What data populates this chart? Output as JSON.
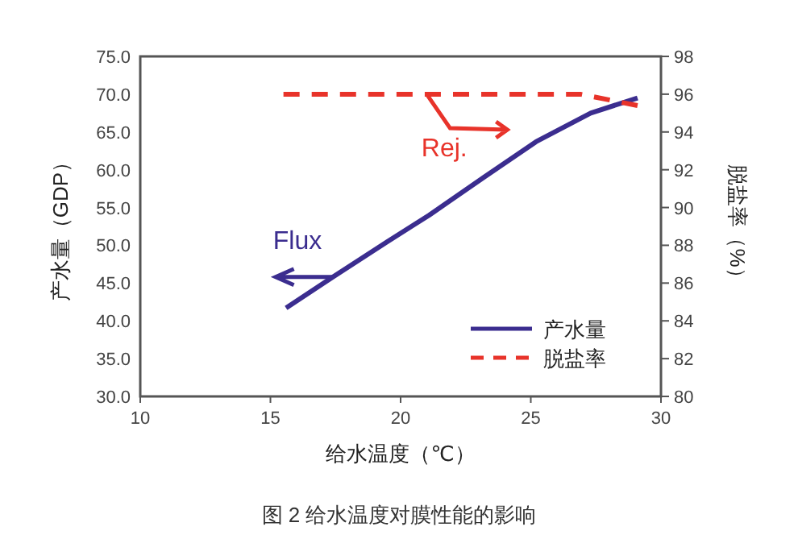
{
  "chart_data": {
    "type": "line",
    "xlabel": "给水温度（℃）",
    "ylabel": "产水量（GDP）",
    "y2label": "脱盐率（%）",
    "xlim": [
      10,
      30
    ],
    "xticks": [
      10,
      15,
      20,
      25,
      30
    ],
    "ylim": [
      30,
      75
    ],
    "yticks": [
      {
        "value": 30,
        "label": "30.0"
      },
      {
        "value": 35,
        "label": "35.0"
      },
      {
        "value": 40,
        "label": "40.0"
      },
      {
        "value": 45,
        "label": "45.0"
      },
      {
        "value": 50,
        "label": "50.0"
      },
      {
        "value": 55,
        "label": "55.0"
      },
      {
        "value": 60,
        "label": "60.0"
      },
      {
        "value": 65,
        "label": "65.0"
      },
      {
        "value": 70,
        "label": "70.0"
      },
      {
        "value": 75,
        "label": "75.0"
      }
    ],
    "y2lim": [
      80,
      98
    ],
    "y2ticks": [
      80,
      82,
      84,
      86,
      88,
      90,
      92,
      94,
      96,
      98
    ],
    "series": [
      {
        "name": "产水量",
        "color": "#3b2d8f",
        "line_style": "solid",
        "x": [
          15.6,
          17.4,
          19.5,
          21.1,
          23.2,
          25.2,
          27.3,
          29.1
        ],
        "values": [
          41.7,
          45.8,
          50.5,
          54.0,
          59.0,
          63.7,
          67.5,
          69.5
        ]
      },
      {
        "name": "脱盐率",
        "color": "#e8332a",
        "line_style": "dashed",
        "axis": "y2",
        "x": [
          15.5,
          26.9,
          29.1
        ],
        "values": [
          96.0,
          96.0,
          95.4
        ]
      }
    ],
    "legend": "bottom right",
    "grid": false,
    "marker": "none",
    "annotations": [
      "Flux",
      "Rej.",
      "图 2 给水温度对膜性能的影响"
    ]
  }
}
